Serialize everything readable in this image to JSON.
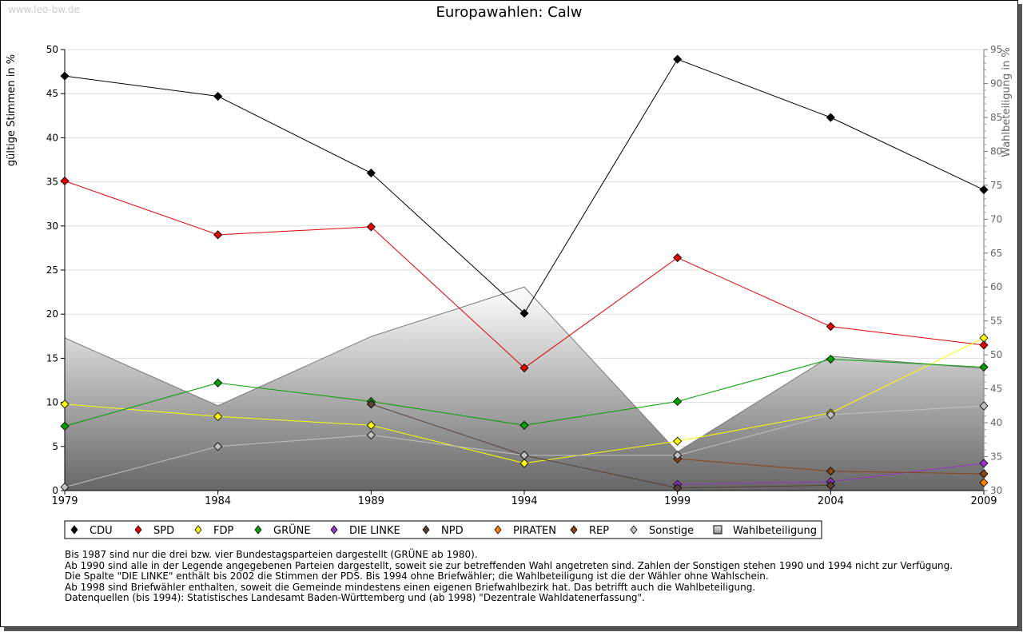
{
  "watermark": "www.leo-bw.de",
  "chart_data": {
    "type": "line",
    "title": "Europawahlen: Calw",
    "ylabel": "gültige Stimmen in %",
    "y2label": "Wahlbeteiligung in %",
    "ylim": [
      0,
      50
    ],
    "y2lim": [
      30,
      95
    ],
    "yticks": [
      "0",
      "5",
      "10",
      "15",
      "20",
      "25",
      "30",
      "35",
      "40",
      "45",
      "50"
    ],
    "y2ticks": [
      "30",
      "35",
      "40",
      "45",
      "50",
      "55",
      "60",
      "65",
      "70",
      "75",
      "80",
      "85",
      "90",
      "95"
    ],
    "categories": [
      "1979",
      "1984",
      "1989",
      "1994",
      "1999",
      "2004",
      "2009"
    ],
    "grid": true,
    "legend": "bottom",
    "series": [
      {
        "name": "CDU",
        "color": "#000000",
        "values": [
          47.0,
          44.7,
          36.0,
          20.1,
          48.9,
          42.3,
          34.1
        ]
      },
      {
        "name": "SPD",
        "color": "#e00000",
        "values": [
          35.1,
          29.0,
          29.9,
          13.9,
          26.4,
          18.6,
          16.5
        ]
      },
      {
        "name": "FDP",
        "color": "#ffff00",
        "values": [
          9.8,
          8.4,
          7.4,
          3.1,
          5.6,
          8.8,
          17.3
        ]
      },
      {
        "name": "GRÜNE",
        "color": "#00a000",
        "values": [
          7.3,
          12.2,
          10.1,
          7.4,
          10.1,
          14.9,
          14.0
        ]
      },
      {
        "name": "DIE LINKE",
        "color": "#9933cc",
        "values": [
          null,
          null,
          null,
          null,
          0.7,
          1.0,
          3.1
        ]
      },
      {
        "name": "NPD",
        "color": "#5c4030",
        "values": [
          null,
          null,
          9.8,
          4.0,
          0.3,
          0.6,
          null
        ]
      },
      {
        "name": "PIRATEN",
        "color": "#ff8000",
        "values": [
          null,
          null,
          null,
          null,
          null,
          null,
          0.9
        ]
      },
      {
        "name": "REP",
        "color": "#8b4513",
        "values": [
          null,
          null,
          null,
          null,
          3.6,
          2.2,
          1.9
        ]
      },
      {
        "name": "Sonstige",
        "color": "#c0c0c0",
        "values": [
          0.4,
          5.0,
          6.3,
          4.0,
          4.0,
          8.6,
          9.6
        ]
      }
    ],
    "area": {
      "name": "Wahlbeteiligung",
      "values": [
        52.5,
        42.5,
        52.7,
        60.0,
        35.7,
        49.8,
        48.0
      ]
    }
  },
  "notes": [
    "Bis 1987 sind nur die drei bzw. vier Bundestagsparteien dargestellt (GRÜNE ab 1980).",
    "Ab 1990 sind alle in der Legende angegebenen Parteien dargestellt, soweit sie zur betreffenden Wahl angetreten sind. Zahlen der Sonstigen stehen 1990 und 1994 nicht zur Verfügung.",
    "Die Spalte \"DIE LINKE\" enthält bis 2002 die Stimmen der PDS. Bis 1994 ohne Briefwähler; die Wahlbeteiligung ist die der Wähler ohne Wahlschein.",
    "Ab 1998 sind Briefwähler enthalten, soweit die Gemeinde mindestens einen eigenen Briefwahlbezirk hat. Das betrifft auch die Wahlbeteiligung.",
    "",
    "Datenquellen (bis 1994): Statistisches Landesamt Baden-Württemberg und (ab 1998) \"Dezentrale Wahldatenerfassung\"."
  ]
}
